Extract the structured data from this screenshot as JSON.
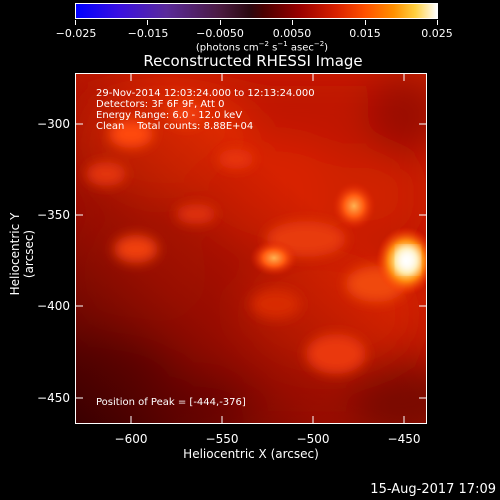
{
  "colorbar": {
    "tick_labels": [
      "−0.025",
      "−0.015",
      "−0.0050",
      "0.0050",
      "0.015",
      "0.025"
    ],
    "units_prefix": "(photons cm",
    "units_sup1": "−2",
    "units_mid": " s",
    "units_sup2": "−1",
    "units_mid2": " asec",
    "units_sup3": "−2",
    "units_suffix": ")"
  },
  "plot": {
    "title": "Reconstructed RHESSI Image",
    "info_line1": "29-Nov-2014 12:03:24.000 to 12:13:24.000",
    "info_line2": "Detectors: 3F 6F 9F, Att 0",
    "info_line3": "Energy Range: 6.0 - 12.0 keV",
    "info_line4": "Clean    Total counts: 8.88E+04",
    "peak_text": "Position of Peak = [-444,-376]",
    "x_axis_label": "Heliocentric X (arcsec)",
    "y_axis_label": "Heliocentric Y (arcsec)",
    "x_tick_labels": [
      "−600",
      "−550",
      "−500",
      "−450"
    ],
    "y_tick_labels": [
      "−300",
      "−350",
      "−400",
      "−450"
    ]
  },
  "footer": {
    "date_stamp": "15-Aug-2017 17:09"
  },
  "colors": {
    "background": "#000000",
    "map_base": "#c81a00",
    "peak": "#ffffff"
  }
}
